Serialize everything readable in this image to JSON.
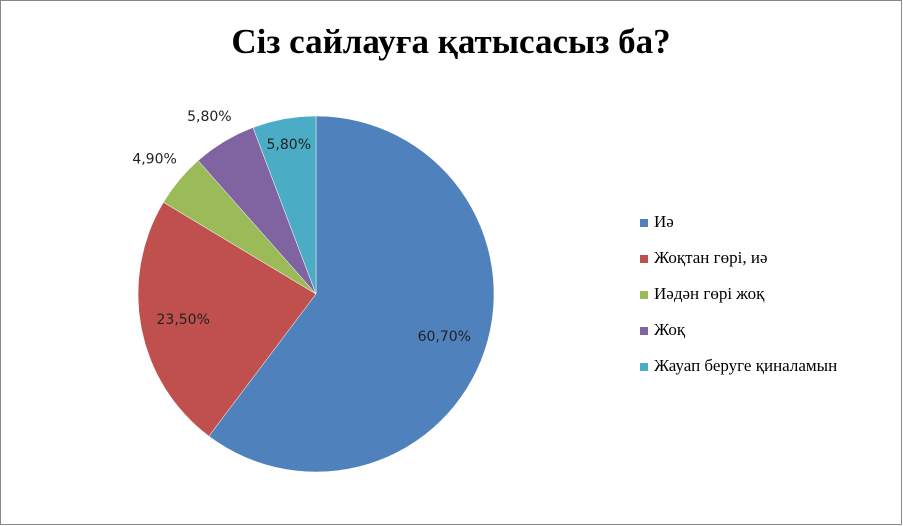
{
  "chart_data": {
    "type": "pie",
    "title": "Сіз сайлауға қатысасыз ба?",
    "categories": [
      "Иә",
      "Жоқтан гөрі, иә",
      "Иәдән гөрі жоқ",
      "Жоқ",
      "Жауап беруге қиналамын"
    ],
    "values": [
      60.7,
      23.5,
      4.9,
      5.8,
      5.8
    ],
    "value_labels": [
      "60,70%",
      "23,50%",
      "4,90%",
      "5,80%",
      "5,80%"
    ],
    "colors": [
      "#4f81bd",
      "#c0504d",
      "#9bbb59",
      "#8064a2",
      "#4bacc6"
    ],
    "legend": "right"
  }
}
